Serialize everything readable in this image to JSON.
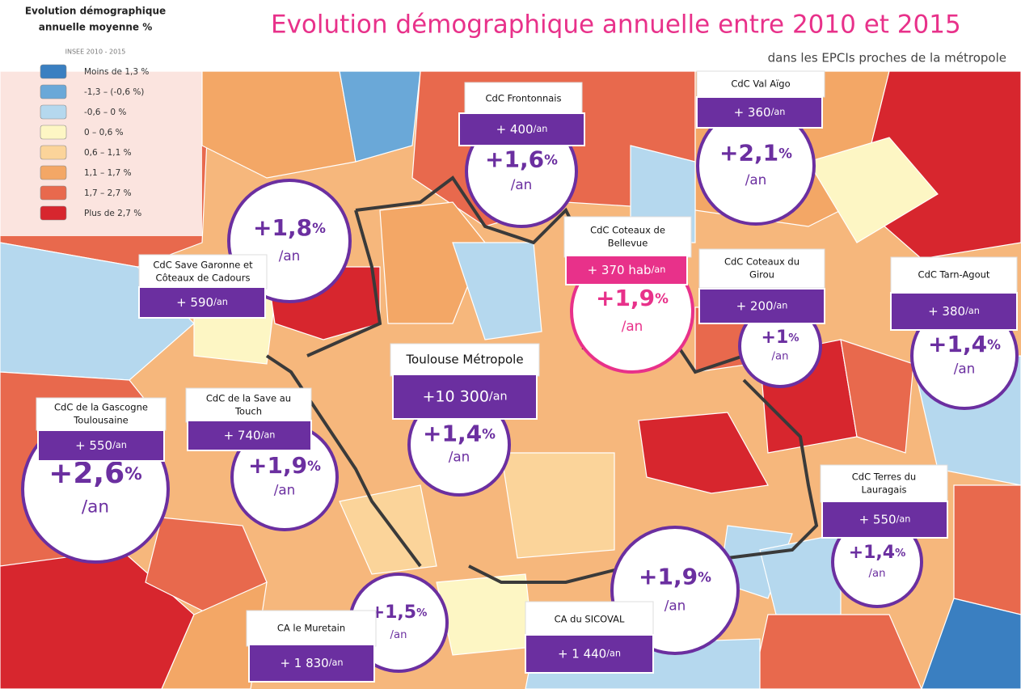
{
  "header": {
    "title": "Evolution démographique annuelle entre 2010 et 2015",
    "subtitle": "dans les EPCIs proches de la métropole"
  },
  "legend": {
    "title": [
      "Evolution démographique",
      "annuelle moyenne %"
    ],
    "source": "INSEE 2010 - 2015",
    "items": [
      {
        "label": "Moins de 1,3 %",
        "color": "#3a7fc1"
      },
      {
        "label": "-1,3 – (-0,6 %)",
        "color": "#6aa8d8"
      },
      {
        "label": "-0,6 – 0 %",
        "color": "#b5d8ee"
      },
      {
        "label": "0 – 0,6 %",
        "color": "#fdf6c4"
      },
      {
        "label": "0,6 – 1,1 %",
        "color": "#fbd49a"
      },
      {
        "label": "1,1 – 1,7 %",
        "color": "#f3a766"
      },
      {
        "label": "1,7 – 2,7 %",
        "color": "#e8694d"
      },
      {
        "label": "Plus de 2,7 %",
        "color": "#d7262e"
      }
    ]
  },
  "callouts": [
    {
      "name": [
        "CdC Frontonnais"
      ],
      "count": "+ 400",
      "count_unit": "/an",
      "rate": "+1,6",
      "rate_unit": "%",
      "per": "/an",
      "color": "#6b2fa0"
    },
    {
      "name": [
        "CdC Val Aïgo"
      ],
      "count": "+ 360",
      "count_unit": "/an",
      "rate": "+2,1",
      "rate_unit": "%",
      "per": "/an",
      "color": "#6b2fa0"
    },
    {
      "name": [
        "CdC Coteaux de",
        "Bellevue"
      ],
      "count": "+ 370 hab",
      "count_unit": "/an",
      "rate": "+1,9",
      "rate_unit": "%",
      "per": "/an",
      "color": "#e8318a"
    },
    {
      "name": [
        "CdC Coteaux du",
        "Girou"
      ],
      "count": "+ 200",
      "count_unit": "/an",
      "rate": "+1",
      "rate_unit": "%",
      "per": "/an",
      "color": "#6b2fa0"
    },
    {
      "name": [
        "CdC Tarn-Agout"
      ],
      "count": "+ 380",
      "count_unit": "/an",
      "rate": "+1,4",
      "rate_unit": "%",
      "per": "/an",
      "color": "#6b2fa0"
    },
    {
      "name": [
        "CdC Save Garonne et",
        "Côteaux de Cadours"
      ],
      "count": "+ 590",
      "count_unit": "/an",
      "rate": "+1,8",
      "rate_unit": "%",
      "per": "/an",
      "color": "#6b2fa0"
    },
    {
      "name": [
        "Toulouse Métropole"
      ],
      "count": "+10 300",
      "count_unit": "/an",
      "rate": "+1,4",
      "rate_unit": "%",
      "per": "/an",
      "color": "#6b2fa0"
    },
    {
      "name": [
        "CdC de la Gascogne",
        "Toulousaine"
      ],
      "count": "+ 550",
      "count_unit": "/an",
      "rate": "+2,6",
      "rate_unit": "%",
      "per": "/an",
      "color": "#6b2fa0"
    },
    {
      "name": [
        "CdC de la Save au",
        "Touch"
      ],
      "count": "+ 740",
      "count_unit": "/an",
      "rate": "+1,9",
      "rate_unit": "%",
      "per": "/an",
      "color": "#6b2fa0"
    },
    {
      "name": [
        "CdC Terres du",
        "Lauragais"
      ],
      "count": "+ 550",
      "count_unit": "/an",
      "rate": "+1,4",
      "rate_unit": "%",
      "per": "/an",
      "color": "#6b2fa0"
    },
    {
      "name": [
        "CA le Muretain"
      ],
      "count": "+ 1 830",
      "count_unit": "/an",
      "rate": "+1,5",
      "rate_unit": "%",
      "per": "/an",
      "color": "#6b2fa0"
    },
    {
      "name": [
        "CA du SICOVAL"
      ],
      "count": "+ 1 440",
      "count_unit": "/an",
      "rate": "+1,9",
      "rate_unit": "%",
      "per": "/an",
      "color": "#6b2fa0"
    }
  ]
}
